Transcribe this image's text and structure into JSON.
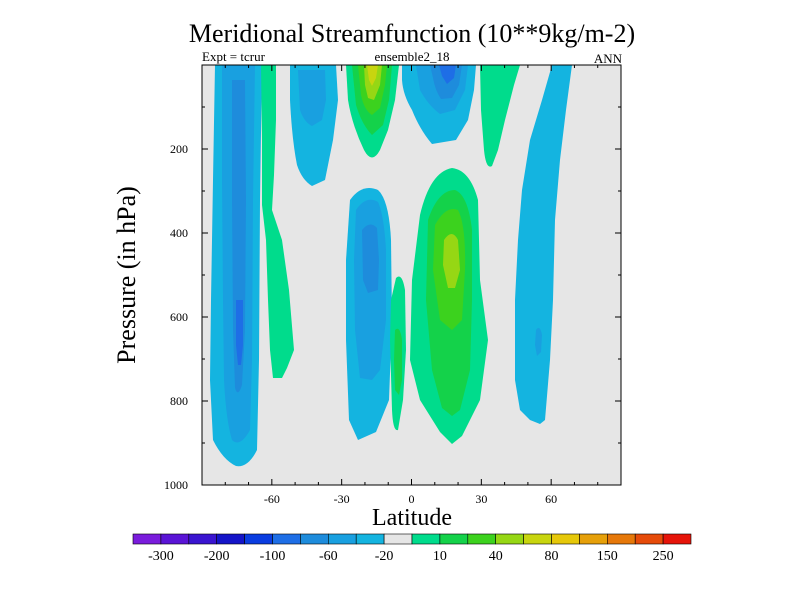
{
  "chart_data": {
    "type": "contour",
    "title": "Meridional Streamfunction (10**9kg/m-2)",
    "left_string": "Expt = tcrur",
    "center_string": "ensemble2_18",
    "right_string": "ANN",
    "xlabel": "Latitude",
    "ylabel": "Pressure (in hPa)",
    "xlim": [
      -90,
      90
    ],
    "ylim": [
      1000,
      0
    ],
    "x_ticks": [
      -60,
      -30,
      0,
      30,
      60
    ],
    "x_tick_labels": [
      "-60",
      "-30",
      "0",
      "30",
      "60"
    ],
    "y_ticks": [
      200,
      400,
      600,
      800,
      1000
    ],
    "y_tick_labels": [
      "200",
      "400",
      "600",
      "800",
      "1000"
    ],
    "background_color": "#e6e6e6",
    "levels": [
      -300,
      -250,
      -200,
      -150,
      -100,
      -80,
      -60,
      -40,
      -20,
      -10,
      10,
      20,
      40,
      60,
      80,
      100,
      150,
      200,
      250,
      300
    ],
    "colorbar_labels": [
      "-300",
      "-200",
      "-100",
      "-60",
      "-20",
      "10",
      "40",
      "80",
      "150",
      "250"
    ],
    "colorbar_colors": [
      "#7a1cdc",
      "#5a14d6",
      "#3a14d0",
      "#1414c8",
      "#0a3ce0",
      "#1e6ee6",
      "#1e8cdc",
      "#19a0e0",
      "#14b4e0",
      "#e6e6e6",
      "#00dc8c",
      "#14d24a",
      "#3cd21e",
      "#96d714",
      "#c8d50f",
      "#e6c80a",
      "#e6a00a",
      "#e6780a",
      "#e64b0a",
      "#e6140a"
    ],
    "regions": [
      {
        "name": "south-polar-cell",
        "sign": "negative",
        "lat_range": [
          -82,
          -68
        ],
        "p_range": [
          0,
          945
        ],
        "max_abs": 60
      },
      {
        "name": "southern-ferrel-cell",
        "sign": "positive",
        "lat_range": [
          -62,
          -50
        ],
        "p_range": [
          0,
          740
        ],
        "max_abs": 10
      },
      {
        "name": "southern-upper-negative",
        "sign": "negative",
        "lat_range": [
          -47,
          -30
        ],
        "p_range": [
          0,
          280
        ],
        "max_abs": 20
      },
      {
        "name": "southern-upper-positive",
        "sign": "positive",
        "lat_range": [
          -28,
          -10
        ],
        "p_range": [
          0,
          230
        ],
        "max_abs": 80
      },
      {
        "name": "southern-hadley-cell",
        "sign": "negative",
        "lat_range": [
          -27,
          -10
        ],
        "p_range": [
          280,
          905
        ],
        "max_abs": 60
      },
      {
        "name": "equatorial-positive",
        "sign": "positive",
        "lat_range": [
          -8,
          -1
        ],
        "p_range": [
          510,
          870
        ],
        "max_abs": 20
      },
      {
        "name": "equatorial-upper-negative",
        "sign": "negative",
        "lat_range": [
          -3,
          20
        ],
        "p_range": [
          0,
          170
        ],
        "max_abs": 100
      },
      {
        "name": "northern-hadley-cell",
        "sign": "positive",
        "lat_range": [
          5,
          32
        ],
        "p_range": [
          270,
          910
        ],
        "max_abs": 80
      },
      {
        "name": "northern-upper-positive",
        "sign": "positive",
        "lat_range": [
          26,
          40
        ],
        "p_range": [
          0,
          240
        ],
        "max_abs": 10
      },
      {
        "name": "northern-ferrel-cell",
        "sign": "negative",
        "lat_range": [
          38,
          61
        ],
        "p_range": [
          0,
          840
        ],
        "max_abs": 20
      }
    ]
  }
}
